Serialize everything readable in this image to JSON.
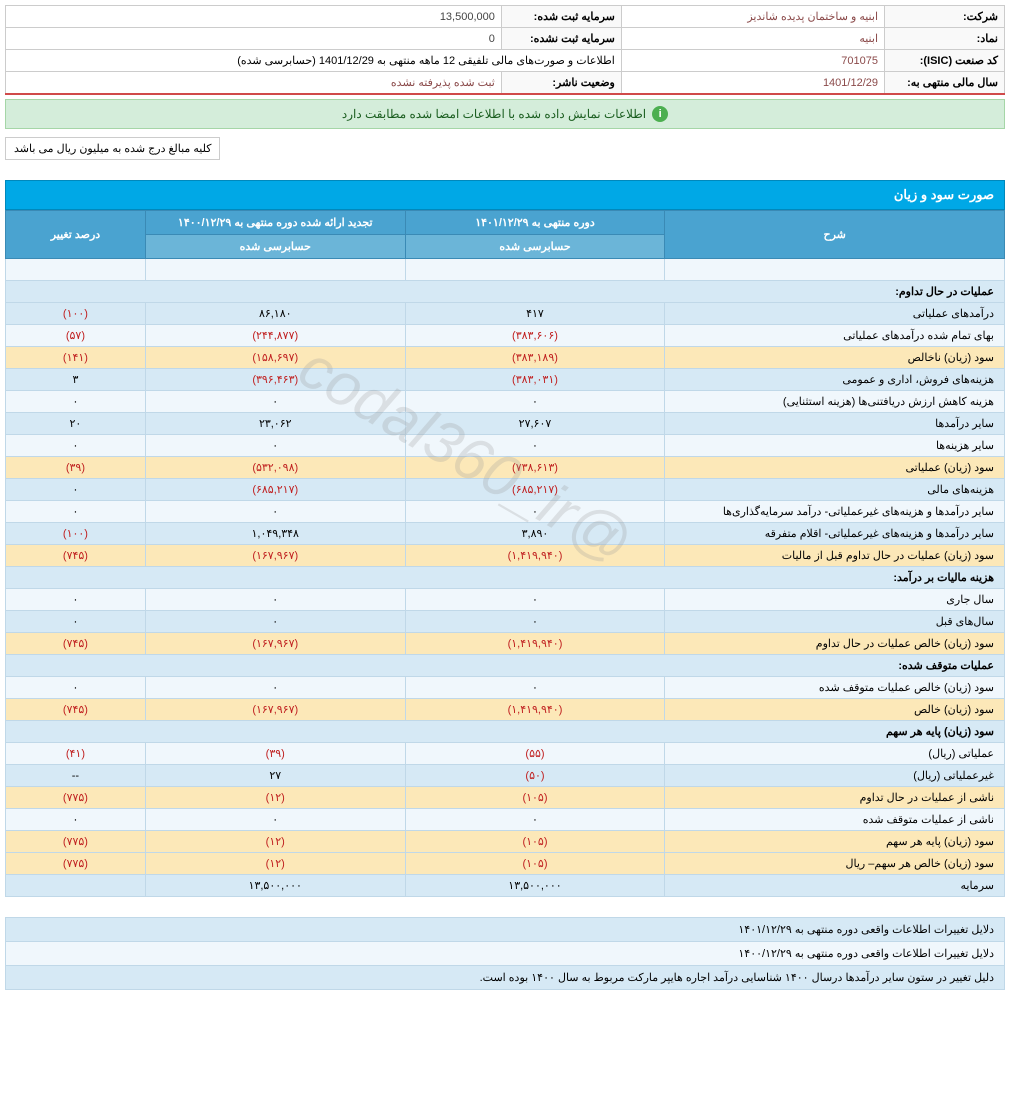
{
  "header": {
    "company_lbl": "شرکت:",
    "company_val": "ابنیه و ساختمان پدیده شاندیز",
    "capital_reg_lbl": "سرمایه ثبت شده:",
    "capital_reg_val": "13,500,000",
    "symbol_lbl": "نماد:",
    "symbol_val": "ابنیه",
    "capital_unreg_lbl": "سرمایه ثبت نشده:",
    "capital_unreg_val": "0",
    "isic_lbl": "کد صنعت (ISIC):",
    "isic_val": "701075",
    "report_lbl": "اطلاعات و صورت‌های مالی تلفیقی  12 ماهه منتهی به 1401/12/29 (حسابرسی شده)",
    "fy_lbl": "سال مالی منتهی به:",
    "fy_val": "1401/12/29",
    "status_lbl": "وضعیت ناشر:",
    "status_val": "ثبت شده پذیرفته نشده"
  },
  "info_bar": "اطلاعات نمایش داده شده با اطلاعات امضا شده مطابقت دارد",
  "note": "کلیه مبالغ درج شده به میلیون ریال می باشد",
  "watermark": "@codal360_ir",
  "section_title": "صورت سود و زیان",
  "col": {
    "desc": "شرح",
    "period1": "دوره منتهی به ۱۴۰۱/۱۲/۲۹",
    "period2": "تجدید ارائه شده دوره منتهی به ۱۴۰۰/۱۲/۲۹",
    "change": "درصد تغییر",
    "audited": "حسابرسی شده"
  },
  "rows": [
    {
      "type": "header",
      "desc": "عملیات در حال تداوم:"
    },
    {
      "type": "blue",
      "desc": "درآمدهای عملیاتی",
      "v1": "۴۱۷",
      "v2": "۸۶,۱۸۰",
      "chg": "(۱۰۰)",
      "neg": [
        false,
        false,
        true
      ]
    },
    {
      "type": "white",
      "desc": "بهای تمام شده درآمدهای عملیاتی",
      "v1": "(۳۸۳,۶۰۶)",
      "v2": "(۲۴۴,۸۷۷)",
      "chg": "(۵۷)",
      "neg": [
        true,
        true,
        true
      ]
    },
    {
      "type": "yellow",
      "desc": "سود (زیان) ناخالص",
      "v1": "(۳۸۳,۱۸۹)",
      "v2": "(۱۵۸,۶۹۷)",
      "chg": "(۱۴۱)",
      "neg": [
        true,
        true,
        true
      ]
    },
    {
      "type": "blue",
      "desc": "هزینه‌های فروش، اداری و عمومی",
      "v1": "(۳۸۳,۰۳۱)",
      "v2": "(۳۹۶,۴۶۳)",
      "chg": "۳",
      "neg": [
        true,
        true,
        false
      ]
    },
    {
      "type": "white",
      "desc": "هزینه کاهش ارزش دریافتنی‌ها (هزینه استثنایی)",
      "v1": "۰",
      "v2": "۰",
      "chg": "۰",
      "neg": [
        false,
        false,
        false
      ]
    },
    {
      "type": "blue",
      "desc": "سایر درآمدها",
      "v1": "۲۷,۶۰۷",
      "v2": "۲۳,۰۶۲",
      "chg": "۲۰",
      "neg": [
        false,
        false,
        false
      ]
    },
    {
      "type": "white",
      "desc": "سایر هزینه‌ها",
      "v1": "۰",
      "v2": "۰",
      "chg": "۰",
      "neg": [
        false,
        false,
        false
      ]
    },
    {
      "type": "yellow",
      "desc": "سود (زیان) عملیاتی",
      "v1": "(۷۳۸,۶۱۳)",
      "v2": "(۵۳۲,۰۹۸)",
      "chg": "(۳۹)",
      "neg": [
        true,
        true,
        true
      ]
    },
    {
      "type": "blue",
      "desc": "هزینه‌های مالی",
      "v1": "(۶۸۵,۲۱۷)",
      "v2": "(۶۸۵,۲۱۷)",
      "chg": "۰",
      "neg": [
        true,
        true,
        false
      ]
    },
    {
      "type": "white",
      "desc": "سایر درآمدها و هزینه‌های غیرعملیاتی- درآمد سرمایه‌گذاری‌ها",
      "v1": "۰",
      "v2": "۰",
      "chg": "۰",
      "neg": [
        false,
        false,
        false
      ]
    },
    {
      "type": "blue",
      "desc": "سایر درآمدها و هزینه‌های غیرعملیاتی- اقلام متفرقه",
      "v1": "۳,۸۹۰",
      "v2": "۱,۰۴۹,۳۴۸",
      "chg": "(۱۰۰)",
      "neg": [
        false,
        false,
        true
      ]
    },
    {
      "type": "yellow",
      "desc": "سود (زیان) عملیات در حال تداوم قبل از مالیات",
      "v1": "(۱,۴۱۹,۹۴۰)",
      "v2": "(۱۶۷,۹۶۷)",
      "chg": "(۷۴۵)",
      "neg": [
        true,
        true,
        true
      ]
    },
    {
      "type": "header",
      "desc": "هزینه مالیات بر درآمد:"
    },
    {
      "type": "white",
      "desc": "سال جاری",
      "v1": "۰",
      "v2": "۰",
      "chg": "۰",
      "neg": [
        false,
        false,
        false
      ]
    },
    {
      "type": "blue",
      "desc": "سال‌های قبل",
      "v1": "۰",
      "v2": "۰",
      "chg": "۰",
      "neg": [
        false,
        false,
        false
      ]
    },
    {
      "type": "yellow",
      "desc": "سود (زیان) خالص عملیات در حال تداوم",
      "v1": "(۱,۴۱۹,۹۴۰)",
      "v2": "(۱۶۷,۹۶۷)",
      "chg": "(۷۴۵)",
      "neg": [
        true,
        true,
        true
      ]
    },
    {
      "type": "header",
      "desc": "عملیات متوقف شده:"
    },
    {
      "type": "white",
      "desc": "سود (زیان) خالص عملیات متوقف شده",
      "v1": "۰",
      "v2": "۰",
      "chg": "۰",
      "neg": [
        false,
        false,
        false
      ]
    },
    {
      "type": "yellow",
      "desc": "سود (زیان) خالص",
      "v1": "(۱,۴۱۹,۹۴۰)",
      "v2": "(۱۶۷,۹۶۷)",
      "chg": "(۷۴۵)",
      "neg": [
        true,
        true,
        true
      ]
    },
    {
      "type": "header",
      "desc": "سود (زیان) پایه هر سهم"
    },
    {
      "type": "white",
      "desc": "عملیاتی (ریال)",
      "v1": "(۵۵)",
      "v2": "(۳۹)",
      "chg": "(۴۱)",
      "neg": [
        true,
        true,
        true
      ]
    },
    {
      "type": "blue",
      "desc": "غیرعملیاتی (ریال)",
      "v1": "(۵۰)",
      "v2": "۲۷",
      "chg": "--",
      "neg": [
        true,
        false,
        false
      ]
    },
    {
      "type": "yellow",
      "desc": "ناشی از عملیات در حال تداوم",
      "v1": "(۱۰۵)",
      "v2": "(۱۲)",
      "chg": "(۷۷۵)",
      "neg": [
        true,
        true,
        true
      ]
    },
    {
      "type": "white",
      "desc": "ناشی از عملیات متوقف شده",
      "v1": "۰",
      "v2": "۰",
      "chg": "۰",
      "neg": [
        false,
        false,
        false
      ]
    },
    {
      "type": "yellow",
      "desc": "سود (زیان) پایه هر سهم",
      "v1": "(۱۰۵)",
      "v2": "(۱۲)",
      "chg": "(۷۷۵)",
      "neg": [
        true,
        true,
        true
      ]
    },
    {
      "type": "yellow",
      "desc": "سود (زیان) خالص هر سهم– ریال",
      "v1": "(۱۰۵)",
      "v2": "(۱۲)",
      "chg": "(۷۷۵)",
      "neg": [
        true,
        true,
        true
      ]
    },
    {
      "type": "blue",
      "desc": "سرمایه",
      "v1": "۱۳,۵۰۰,۰۰۰",
      "v2": "۱۳,۵۰۰,۰۰۰",
      "chg": "",
      "neg": [
        false,
        false,
        false
      ]
    }
  ],
  "footer": [
    "دلایل تغییرات اطلاعات واقعی دوره منتهی به ۱۴۰۱/۱۲/۲۹",
    "دلایل تغییرات اطلاعات واقعی دوره منتهی به ۱۴۰۰/۱۲/۲۹",
    "دلیل تغییر در ستون سایر درآمدها درسال ۱۴۰۰ شناسایی درآمد اجاره هایپر مارکت مربوط به سال ۱۴۰۰ بوده است."
  ]
}
